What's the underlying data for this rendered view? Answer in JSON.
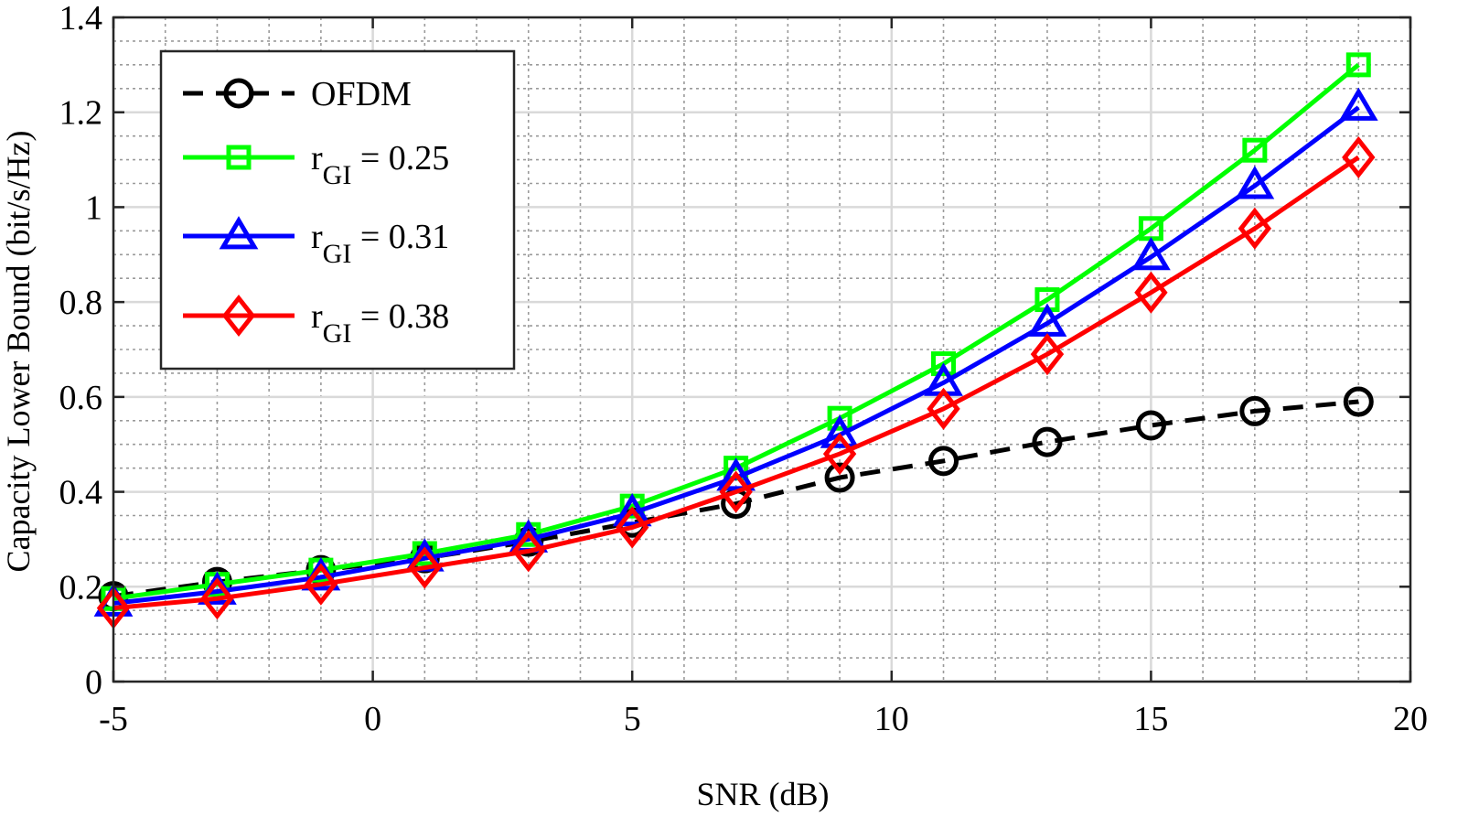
{
  "chart_data": {
    "type": "line",
    "title": "",
    "xlabel": "SNR (dB)",
    "ylabel": "Capacity Lower Bound (bit/s/Hz)",
    "xlim": [
      -5,
      20
    ],
    "ylim": [
      0,
      1.4
    ],
    "xticks": [
      -5,
      0,
      5,
      10,
      15,
      20
    ],
    "xtick_labels": [
      "-5",
      "0",
      "5",
      "10",
      "15",
      "20"
    ],
    "yticks": [
      0,
      0.2,
      0.4,
      0.6,
      0.8,
      1,
      1.2,
      1.4
    ],
    "ytick_labels": [
      "0",
      "0.2",
      "0.4",
      "0.6",
      "0.8",
      "1",
      "1.2",
      "1.4"
    ],
    "grid": true,
    "minor_grid": true,
    "legend_position": "top-left",
    "x": [
      -5,
      -3,
      -1,
      1,
      3,
      5,
      7,
      9,
      11,
      13,
      15,
      17,
      19
    ],
    "series": [
      {
        "name": "OFDM",
        "legend_label": "OFDM",
        "color": "#000000",
        "dash": "dashed",
        "marker": "circle",
        "values": [
          0.18,
          0.21,
          0.235,
          0.26,
          0.295,
          0.335,
          0.375,
          0.43,
          0.465,
          0.505,
          0.54,
          0.57,
          0.59
        ]
      },
      {
        "name": "r_GI = 0.25",
        "legend_label": "r",
        "legend_sub": "GI",
        "legend_rest": " = 0.25",
        "color": "#00ff00",
        "dash": "solid",
        "marker": "square",
        "values": [
          0.175,
          0.205,
          0.235,
          0.27,
          0.31,
          0.37,
          0.45,
          0.555,
          0.67,
          0.805,
          0.955,
          1.12,
          1.3
        ]
      },
      {
        "name": "r_GI = 0.31",
        "legend_label": "r",
        "legend_sub": "GI",
        "legend_rest": " = 0.31",
        "color": "#0000ff",
        "dash": "solid",
        "marker": "triangle",
        "values": [
          0.165,
          0.19,
          0.22,
          0.26,
          0.3,
          0.355,
          0.43,
          0.52,
          0.63,
          0.755,
          0.895,
          1.045,
          1.21
        ]
      },
      {
        "name": "r_GI = 0.38",
        "legend_label": "r",
        "legend_sub": "GI",
        "legend_rest": " = 0.38",
        "color": "#ff0000",
        "dash": "solid",
        "marker": "diamond",
        "values": [
          0.155,
          0.175,
          0.205,
          0.24,
          0.275,
          0.325,
          0.4,
          0.48,
          0.575,
          0.69,
          0.82,
          0.955,
          1.105
        ]
      }
    ]
  }
}
